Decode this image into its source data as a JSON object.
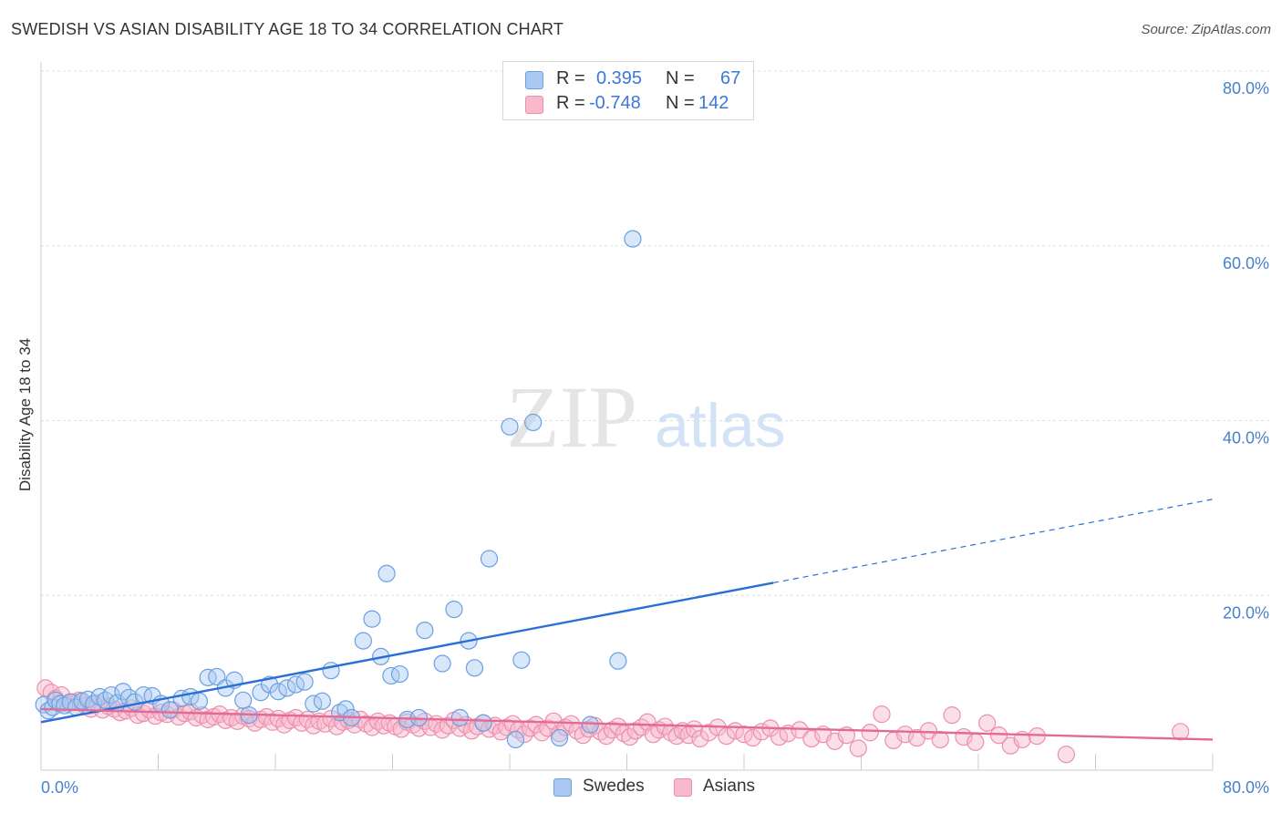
{
  "header": {
    "title": "SWEDISH VS ASIAN DISABILITY AGE 18 TO 34 CORRELATION CHART",
    "source": "Source: ZipAtlas.com"
  },
  "watermark": {
    "zip": "ZIP",
    "atlas": "atlas"
  },
  "legend": {
    "r_label": "R =",
    "n_label": "N =",
    "rows": [
      {
        "r": "0.395",
        "n": "67"
      },
      {
        "r": "-0.748",
        "n": "142"
      }
    ]
  },
  "colors": {
    "swedes_fill": "#a9c9f2",
    "swedes_stroke": "#6b9fe0",
    "swedes_line": "#2a6fd6",
    "asians_fill": "#f7b9cb",
    "asians_stroke": "#ec8fab",
    "asians_line": "#e46a96",
    "tick_label": "#4a7fc9",
    "grid": "#dddddd"
  },
  "chart_data": {
    "type": "scatter",
    "title": "SWEDISH VS ASIAN DISABILITY AGE 18 TO 34 CORRELATION CHART",
    "xlabel": "",
    "ylabel": "Disability Age 18 to 34",
    "xlim": [
      0,
      80
    ],
    "ylim": [
      0,
      80
    ],
    "x_tick_labels": [
      "0.0%",
      "80.0%"
    ],
    "y_ticks": [
      20,
      40,
      60,
      80
    ],
    "y_tick_labels": [
      "20.0%",
      "40.0%",
      "60.0%",
      "80.0%"
    ],
    "grid": true,
    "legend_position": "bottom",
    "series": [
      {
        "name": "Swedes",
        "r": 0.395,
        "n": 67,
        "trend": {
          "x_start": 0,
          "y_start": 5.5,
          "x_solid_end": 50,
          "x_end": 80,
          "y_end": 31.0
        },
        "points": [
          [
            0.2,
            7.5
          ],
          [
            0.5,
            6.8
          ],
          [
            0.8,
            7.2
          ],
          [
            1.0,
            8.0
          ],
          [
            1.3,
            7.6
          ],
          [
            1.6,
            7.4
          ],
          [
            2.0,
            7.8
          ],
          [
            2.4,
            7.2
          ],
          [
            2.8,
            7.9
          ],
          [
            3.2,
            8.1
          ],
          [
            3.6,
            7.6
          ],
          [
            4.0,
            8.4
          ],
          [
            4.4,
            8.0
          ],
          [
            4.8,
            8.6
          ],
          [
            5.2,
            7.7
          ],
          [
            5.6,
            9.0
          ],
          [
            6.0,
            8.3
          ],
          [
            6.4,
            7.8
          ],
          [
            7.0,
            8.6
          ],
          [
            7.6,
            8.5
          ],
          [
            8.2,
            7.6
          ],
          [
            8.8,
            6.9
          ],
          [
            9.6,
            8.2
          ],
          [
            10.2,
            8.4
          ],
          [
            10.8,
            7.9
          ],
          [
            11.4,
            10.6
          ],
          [
            12.0,
            10.7
          ],
          [
            12.6,
            9.4
          ],
          [
            13.2,
            10.3
          ],
          [
            13.8,
            8.0
          ],
          [
            14.2,
            6.3
          ],
          [
            15.0,
            8.9
          ],
          [
            15.6,
            9.8
          ],
          [
            16.2,
            9.0
          ],
          [
            16.8,
            9.4
          ],
          [
            17.4,
            9.8
          ],
          [
            18.0,
            10.1
          ],
          [
            18.6,
            7.6
          ],
          [
            19.2,
            7.9
          ],
          [
            19.8,
            11.4
          ],
          [
            20.4,
            6.6
          ],
          [
            20.8,
            7.0
          ],
          [
            21.2,
            6.0
          ],
          [
            22.0,
            14.8
          ],
          [
            22.6,
            17.3
          ],
          [
            23.2,
            13.0
          ],
          [
            23.6,
            22.5
          ],
          [
            23.9,
            10.8
          ],
          [
            24.5,
            11.0
          ],
          [
            25.0,
            5.8
          ],
          [
            25.8,
            6.0
          ],
          [
            26.2,
            16.0
          ],
          [
            27.4,
            12.2
          ],
          [
            28.2,
            18.4
          ],
          [
            28.6,
            6.0
          ],
          [
            29.2,
            14.8
          ],
          [
            29.6,
            11.7
          ],
          [
            30.2,
            5.4
          ],
          [
            30.6,
            24.2
          ],
          [
            32.0,
            39.3
          ],
          [
            32.4,
            3.5
          ],
          [
            32.8,
            12.6
          ],
          [
            33.6,
            39.8
          ],
          [
            35.4,
            3.7
          ],
          [
            37.5,
            5.2
          ],
          [
            39.4,
            12.5
          ],
          [
            40.4,
            60.8
          ]
        ]
      },
      {
        "name": "Asians",
        "r": -0.748,
        "n": 142,
        "trend": {
          "x_start": 0,
          "y_start": 7.0,
          "x_end": 80,
          "y_end": 3.5
        },
        "points": [
          [
            0.3,
            9.4
          ],
          [
            0.7,
            8.9
          ],
          [
            1.0,
            8.2
          ],
          [
            1.4,
            8.6
          ],
          [
            1.8,
            7.6
          ],
          [
            2.2,
            7.8
          ],
          [
            2.6,
            8.0
          ],
          [
            3.0,
            7.4
          ],
          [
            3.4,
            7.0
          ],
          [
            3.8,
            7.7
          ],
          [
            4.2,
            6.9
          ],
          [
            4.6,
            7.3
          ],
          [
            5.0,
            7.0
          ],
          [
            5.4,
            6.6
          ],
          [
            5.8,
            6.8
          ],
          [
            6.2,
            7.1
          ],
          [
            6.6,
            6.3
          ],
          [
            7.0,
            6.5
          ],
          [
            7.4,
            6.9
          ],
          [
            7.8,
            6.2
          ],
          [
            8.2,
            6.6
          ],
          [
            8.6,
            6.4
          ],
          [
            9.0,
            6.9
          ],
          [
            9.4,
            6.1
          ],
          [
            9.8,
            6.5
          ],
          [
            10.2,
            6.7
          ],
          [
            10.6,
            6.0
          ],
          [
            11.0,
            6.3
          ],
          [
            11.4,
            5.8
          ],
          [
            11.8,
            6.1
          ],
          [
            12.2,
            6.4
          ],
          [
            12.6,
            5.7
          ],
          [
            13.0,
            6.0
          ],
          [
            13.4,
            5.6
          ],
          [
            13.8,
            6.2
          ],
          [
            14.2,
            5.9
          ],
          [
            14.6,
            5.4
          ],
          [
            15.0,
            5.8
          ],
          [
            15.4,
            6.1
          ],
          [
            15.8,
            5.5
          ],
          [
            16.2,
            5.9
          ],
          [
            16.6,
            5.2
          ],
          [
            17.0,
            5.7
          ],
          [
            17.4,
            6.0
          ],
          [
            17.8,
            5.4
          ],
          [
            18.2,
            5.8
          ],
          [
            18.6,
            5.1
          ],
          [
            19.0,
            5.6
          ],
          [
            19.4,
            5.3
          ],
          [
            19.8,
            5.9
          ],
          [
            20.2,
            5.0
          ],
          [
            20.6,
            5.5
          ],
          [
            21.0,
            5.7
          ],
          [
            21.4,
            5.2
          ],
          [
            21.8,
            5.8
          ],
          [
            22.2,
            5.3
          ],
          [
            22.6,
            4.9
          ],
          [
            23.0,
            5.6
          ],
          [
            23.4,
            5.1
          ],
          [
            23.8,
            5.4
          ],
          [
            24.2,
            5.0
          ],
          [
            24.6,
            4.7
          ],
          [
            25.0,
            5.5
          ],
          [
            25.4,
            5.2
          ],
          [
            25.8,
            4.8
          ],
          [
            26.2,
            5.6
          ],
          [
            26.6,
            4.9
          ],
          [
            27.0,
            5.3
          ],
          [
            27.4,
            4.6
          ],
          [
            27.8,
            5.1
          ],
          [
            28.2,
            5.7
          ],
          [
            28.6,
            4.8
          ],
          [
            29.0,
            5.2
          ],
          [
            29.4,
            4.5
          ],
          [
            29.8,
            5.0
          ],
          [
            30.2,
            5.4
          ],
          [
            30.6,
            4.7
          ],
          [
            31.0,
            5.1
          ],
          [
            31.4,
            4.4
          ],
          [
            31.8,
            4.9
          ],
          [
            32.2,
            5.3
          ],
          [
            32.6,
            4.6
          ],
          [
            33.0,
            4.1
          ],
          [
            33.4,
            4.8
          ],
          [
            33.8,
            5.2
          ],
          [
            34.2,
            4.3
          ],
          [
            34.6,
            4.8
          ],
          [
            35.0,
            5.6
          ],
          [
            35.4,
            4.2
          ],
          [
            35.8,
            4.9
          ],
          [
            36.2,
            5.3
          ],
          [
            36.6,
            4.5
          ],
          [
            37.0,
            4.0
          ],
          [
            37.4,
            4.7
          ],
          [
            37.8,
            5.1
          ],
          [
            38.2,
            4.4
          ],
          [
            38.6,
            3.9
          ],
          [
            39.0,
            4.6
          ],
          [
            39.4,
            5.0
          ],
          [
            39.8,
            4.2
          ],
          [
            40.2,
            3.8
          ],
          [
            40.6,
            4.5
          ],
          [
            41.0,
            4.9
          ],
          [
            41.4,
            5.5
          ],
          [
            41.8,
            4.1
          ],
          [
            42.2,
            4.6
          ],
          [
            42.6,
            5.0
          ],
          [
            43.0,
            4.3
          ],
          [
            43.4,
            3.9
          ],
          [
            43.8,
            4.5
          ],
          [
            44.2,
            4.0
          ],
          [
            44.6,
            4.7
          ],
          [
            45.0,
            3.6
          ],
          [
            45.6,
            4.3
          ],
          [
            46.2,
            4.9
          ],
          [
            46.8,
            3.9
          ],
          [
            47.4,
            4.5
          ],
          [
            48.0,
            4.1
          ],
          [
            48.6,
            3.7
          ],
          [
            49.2,
            4.4
          ],
          [
            49.8,
            4.8
          ],
          [
            50.4,
            3.8
          ],
          [
            51.0,
            4.2
          ],
          [
            51.8,
            4.6
          ],
          [
            52.6,
            3.6
          ],
          [
            53.4,
            4.1
          ],
          [
            54.2,
            3.3
          ],
          [
            55.0,
            4.0
          ],
          [
            55.8,
            2.5
          ],
          [
            56.6,
            4.3
          ],
          [
            57.4,
            6.4
          ],
          [
            58.2,
            3.4
          ],
          [
            59.0,
            4.1
          ],
          [
            59.8,
            3.7
          ],
          [
            60.6,
            4.5
          ],
          [
            61.4,
            3.5
          ],
          [
            62.2,
            6.3
          ],
          [
            63.0,
            3.8
          ],
          [
            63.8,
            3.2
          ],
          [
            64.6,
            5.4
          ],
          [
            65.4,
            4.0
          ],
          [
            66.2,
            2.8
          ],
          [
            67.0,
            3.5
          ],
          [
            68.0,
            3.9
          ],
          [
            70.0,
            1.8
          ],
          [
            77.8,
            4.4
          ]
        ]
      }
    ]
  },
  "bottom_legend": [
    {
      "label": "Swedes"
    },
    {
      "label": "Asians"
    }
  ]
}
